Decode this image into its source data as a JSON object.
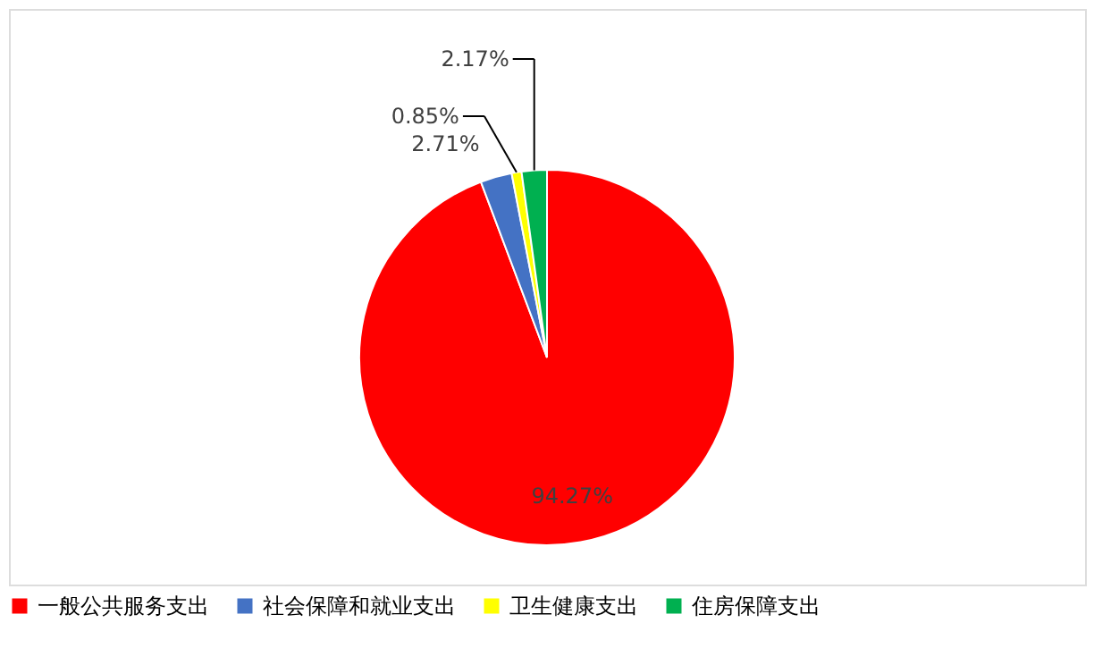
{
  "chart_data": {
    "type": "pie",
    "categories": [
      "一般公共服务支出",
      "社会保障和就业支出",
      "卫生健康支出",
      "住房保障支出"
    ],
    "values": [
      94.27,
      2.71,
      0.85,
      2.17
    ],
    "colors": [
      "#ff0000",
      "#4472c4",
      "#ffff00",
      "#00b050"
    ],
    "value_labels": [
      "94.27%",
      "2.71%",
      "0.85%",
      "2.17%"
    ],
    "legend": "bottom"
  }
}
